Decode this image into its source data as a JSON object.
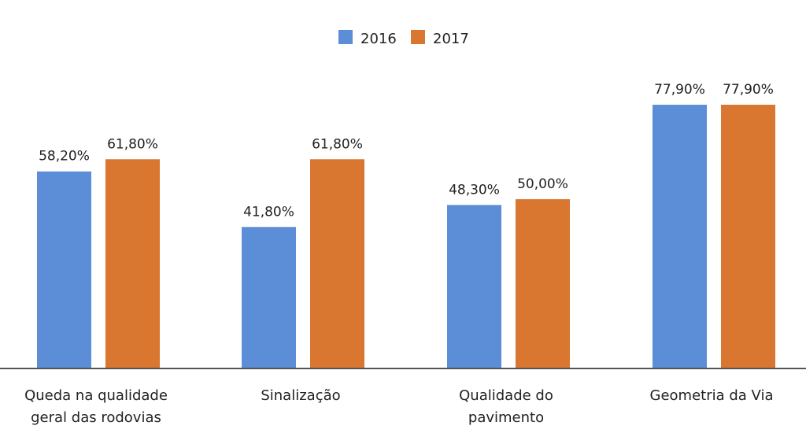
{
  "chart_data": {
    "type": "bar",
    "title": "",
    "xlabel": "",
    "ylabel": "",
    "ylim": [
      0,
      100
    ],
    "grid": false,
    "legend_placement": "top-center",
    "categories": [
      [
        "Queda na qualidade",
        "geral das rodovias"
      ],
      [
        "Sinalização"
      ],
      [
        "Qualidade do",
        "pavimento"
      ],
      [
        "Geometria da Via"
      ]
    ],
    "series": [
      {
        "name": "2016",
        "color": "#5B8ED6",
        "values": [
          58.2,
          41.8,
          48.3,
          77.9
        ],
        "labels": [
          "58,20%",
          "41,80%",
          "48,30%",
          "77,90%"
        ]
      },
      {
        "name": "2017",
        "color": "#D9762F",
        "values": [
          61.8,
          61.8,
          50.0,
          77.9
        ],
        "labels": [
          "61,80%",
          "61,80%",
          "50,00%",
          "77,90%"
        ]
      }
    ]
  }
}
